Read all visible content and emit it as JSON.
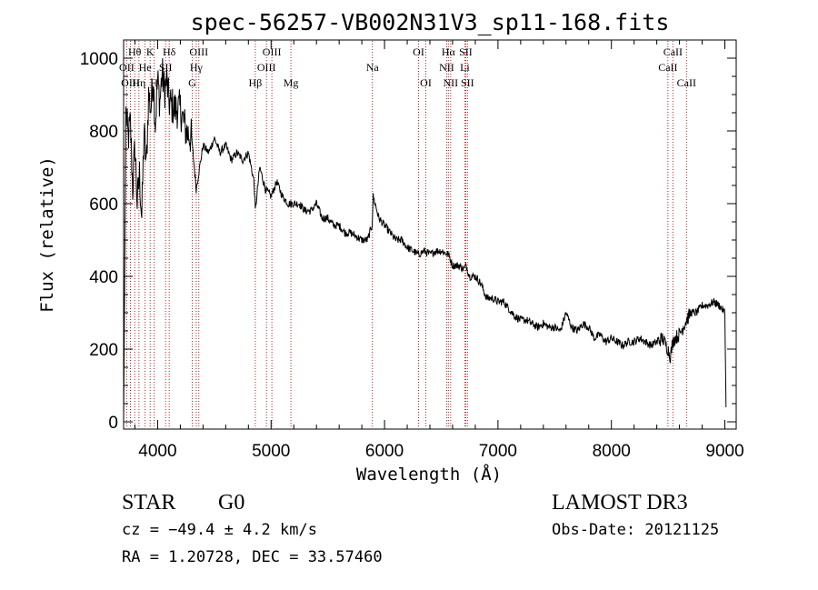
{
  "chart_data": {
    "type": "line",
    "title": "spec-56257-VB002N31V3_sp11-168.fits",
    "xlabel": "Wavelength (Å)",
    "ylabel": "Flux (relative)",
    "xlim": [
      3700,
      9100
    ],
    "ylim": [
      -20,
      1050
    ],
    "xticks": [
      4000,
      5000,
      6000,
      7000,
      8000,
      9000
    ],
    "yticks": [
      0,
      200,
      400,
      600,
      800,
      1000
    ],
    "grid": false,
    "series": [
      {
        "color": "#000000",
        "x": [
          3700,
          3720,
          3740,
          3760,
          3780,
          3800,
          3820,
          3840,
          3860,
          3880,
          3900,
          3920,
          3940,
          3960,
          3980,
          4000,
          4020,
          4040,
          4060,
          4080,
          4100,
          4150,
          4200,
          4250,
          4300,
          4340,
          4400,
          4450,
          4500,
          4550,
          4600,
          4650,
          4700,
          4750,
          4800,
          4850,
          4861,
          4900,
          4950,
          5000,
          5050,
          5100,
          5150,
          5200,
          5250,
          5300,
          5350,
          5400,
          5450,
          5500,
          5550,
          5600,
          5650,
          5700,
          5750,
          5800,
          5850,
          5890,
          5900,
          5950,
          6000,
          6050,
          6100,
          6150,
          6200,
          6250,
          6300,
          6350,
          6400,
          6450,
          6500,
          6563,
          6600,
          6650,
          6700,
          6720,
          6750,
          6800,
          6850,
          6900,
          6950,
          7000,
          7050,
          7100,
          7150,
          7200,
          7250,
          7300,
          7350,
          7400,
          7450,
          7500,
          7550,
          7600,
          7650,
          7700,
          7750,
          7800,
          7850,
          7900,
          7950,
          8000,
          8050,
          8100,
          8150,
          8200,
          8250,
          8300,
          8350,
          8400,
          8450,
          8498,
          8520,
          8542,
          8560,
          8600,
          8662,
          8700,
          8750,
          8800,
          8850,
          8900,
          8950,
          9000,
          9010
        ],
        "y": [
          0,
          850,
          780,
          820,
          640,
          760,
          600,
          680,
          560,
          800,
          700,
          900,
          860,
          950,
          820,
          940,
          880,
          960,
          910,
          940,
          880,
          860,
          860,
          800,
          780,
          640,
          760,
          740,
          780,
          740,
          760,
          720,
          740,
          720,
          740,
          660,
          580,
          700,
          640,
          620,
          660,
          620,
          600,
          600,
          600,
          580,
          580,
          600,
          560,
          560,
          540,
          540,
          520,
          520,
          510,
          500,
          500,
          540,
          620,
          560,
          540,
          520,
          500,
          500,
          480,
          470,
          460,
          470,
          460,
          470,
          470,
          460,
          430,
          430,
          420,
          430,
          400,
          400,
          380,
          340,
          340,
          330,
          330,
          310,
          290,
          280,
          280,
          270,
          260,
          270,
          260,
          260,
          250,
          300,
          260,
          250,
          270,
          260,
          230,
          240,
          220,
          230,
          220,
          210,
          220,
          220,
          230,
          220,
          210,
          220,
          230,
          200,
          180,
          220,
          230,
          240,
          280,
          300,
          300,
          320,
          320,
          330,
          320,
          300,
          40
        ]
      }
    ],
    "spectral_lines": [
      {
        "label": "Hθ",
        "wavelength": 3798,
        "row": 1
      },
      {
        "label": "OII",
        "wavelength": 3727,
        "row": 2
      },
      {
        "label": "OIII",
        "wavelength": 3760,
        "row": 3
      },
      {
        "label": "K",
        "wavelength": 3934,
        "row": 1
      },
      {
        "label": "Hη",
        "wavelength": 3835,
        "row": 3
      },
      {
        "label": "He",
        "wavelength": 3889,
        "row": 2
      },
      {
        "label": "H",
        "wavelength": 3969,
        "row": 3
      },
      {
        "label": "SII",
        "wavelength": 4070,
        "row": 2
      },
      {
        "label": "Hδ",
        "wavelength": 4102,
        "row": 1
      },
      {
        "label": "OIII",
        "wavelength": 4363,
        "row": 1
      },
      {
        "label": "Hγ",
        "wavelength": 4340,
        "row": 2
      },
      {
        "label": "G",
        "wavelength": 4305,
        "row": 3
      },
      {
        "label": "Hβ",
        "wavelength": 4861,
        "row": 3
      },
      {
        "label": "OIII",
        "wavelength": 5007,
        "row": 1
      },
      {
        "label": "OIII",
        "wavelength": 4959,
        "row": 2
      },
      {
        "label": "Mg",
        "wavelength": 5175,
        "row": 3
      },
      {
        "label": "Na",
        "wavelength": 5893,
        "row": 2
      },
      {
        "label": "OI",
        "wavelength": 6300,
        "row": 1
      },
      {
        "label": "OI",
        "wavelength": 6364,
        "row": 3
      },
      {
        "label": "Hα",
        "wavelength": 6563,
        "row": 1
      },
      {
        "label": "SII",
        "wavelength": 6716,
        "row": 1
      },
      {
        "label": "NII",
        "wavelength": 6548,
        "row": 2
      },
      {
        "label": "Li",
        "wavelength": 6708,
        "row": 2
      },
      {
        "label": "NII",
        "wavelength": 6583,
        "row": 3
      },
      {
        "label": "SII",
        "wavelength": 6731,
        "row": 3
      },
      {
        "label": "CaII",
        "wavelength": 8542,
        "row": 1
      },
      {
        "label": "CaII",
        "wavelength": 8498,
        "row": 2
      },
      {
        "label": "CaII",
        "wavelength": 8662,
        "row": 3
      }
    ],
    "line_marker_color": "#b22222"
  },
  "info": {
    "class_label": "STAR",
    "subclass": "G0",
    "survey": "LAMOST DR3",
    "cz": "cz = −49.4 ± 4.2 km/s",
    "obs_date": "Obs-Date: 20121125",
    "coords": "RA =   1.20728, DEC =  33.57460"
  }
}
